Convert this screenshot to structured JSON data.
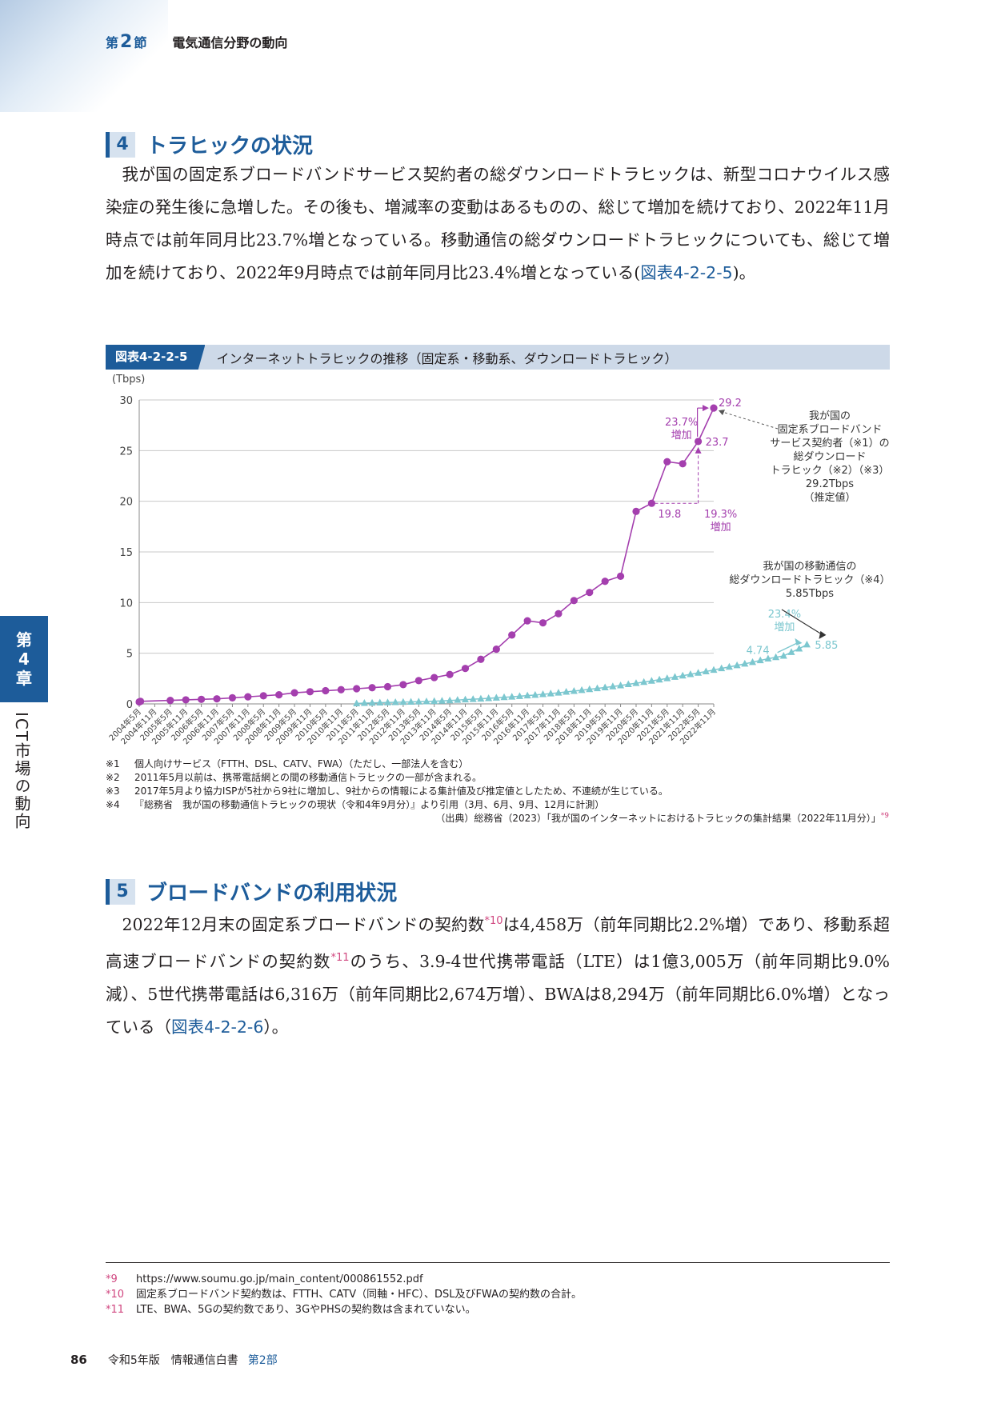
{
  "running_head": {
    "section_prefix": "第",
    "section_num": "2",
    "section_suffix": "節",
    "title": "電気通信分野の動向"
  },
  "section4": {
    "num": "4",
    "title": "トラヒックの状況",
    "p1": "我が国の固定系ブロードバンドサービス契約者の総ダウンロードトラヒックは、新型コロナウイルス感染症の発生後に急増した。その後も、増減率の変動はあるものの、総じて増加を続けており、2022年11月時点では前年同月比23.7%増となっている。移動通信の総ダウンロードトラヒックについても、総じて増加を続けており、2022年9月時点では前年同月比23.4%増となっている",
    "p1_open": "(",
    "p1_ref": "図表4-2-2-5",
    "p1_close": ")。"
  },
  "figure": {
    "label": "図表4-2-2-5",
    "title": "インターネットトラヒックの推移（固定系・移動系、ダウンロードトラヒック）",
    "notes": [
      {
        "mark": "※1",
        "text": "個人向けサービス（FTTH、DSL、CATV、FWA）（ただし、一部法人を含む）"
      },
      {
        "mark": "※2",
        "text": "2011年5月以前は、携帯電話網との間の移動通信トラヒックの一部が含まれる。"
      },
      {
        "mark": "※3",
        "text": "2017年5月より協力ISPが5社から9社に増加し、9社からの情報による集計値及び推定値としたため、不連続が生じている。"
      },
      {
        "mark": "※4",
        "text": "『総務省　我が国の移動通信トラヒックの現状（令和4年9月分）』より引用（3月、6月、9月、12月に計測）"
      }
    ],
    "source": "（出典）総務省（2023）「我が国のインターネットにおけるトラヒックの集計結果（2022年11月分）」",
    "source_sup": "*9"
  },
  "chart_data": {
    "type": "line",
    "ylabel": "(Tbps)",
    "ylim": [
      0,
      30
    ],
    "yticks": [
      0,
      5,
      10,
      15,
      20,
      25,
      30
    ],
    "grid": true,
    "categories": [
      "2004年5月",
      "2004年11月",
      "2005年5月",
      "2005年11月",
      "2006年5月",
      "2006年11月",
      "2007年5月",
      "2007年11月",
      "2008年5月",
      "2008年11月",
      "2009年5月",
      "2009年11月",
      "2010年5月",
      "2010年11月",
      "2011年5月",
      "2011年11月",
      "2012年5月",
      "2012年11月",
      "2013年5月",
      "2013年11月",
      "2014年5月",
      "2014年11月",
      "2015年5月",
      "2015年11月",
      "2016年5月",
      "2016年11月",
      "2017年5月",
      "2017年11月",
      "2018年5月",
      "2018年11月",
      "2019年5月",
      "2019年11月",
      "2020年5月",
      "2020年11月",
      "2021年5月",
      "2021年11月",
      "2022年5月",
      "2022年11月"
    ],
    "fixed": {
      "months": [
        0,
        0.5,
        12,
        18,
        24,
        30,
        36,
        42,
        48,
        54,
        60,
        66,
        72,
        78,
        84,
        90,
        96,
        102,
        108,
        114,
        120,
        126,
        132,
        138,
        144,
        150,
        156,
        162,
        168,
        174,
        180,
        186,
        192,
        198,
        204,
        210,
        216,
        222
      ],
      "values": [
        0.2,
        0.25,
        0.35,
        0.4,
        0.45,
        0.5,
        0.6,
        0.7,
        0.8,
        0.9,
        1.1,
        1.2,
        1.3,
        1.4,
        1.5,
        1.6,
        1.7,
        1.9,
        2.3,
        2.6,
        2.9,
        3.5,
        4.4,
        5.4,
        6.8,
        8.2,
        8.0,
        8.9,
        10.2,
        11.0,
        12.1,
        12.6,
        19.0,
        19.8,
        23.9,
        23.7,
        25.9,
        29.2
      ]
    },
    "mobile": {
      "start_month": 84,
      "step_months": 3,
      "values": [
        0.04,
        0.08,
        0.1,
        0.12,
        0.14,
        0.16,
        0.18,
        0.2,
        0.22,
        0.24,
        0.27,
        0.3,
        0.34,
        0.38,
        0.42,
        0.46,
        0.5,
        0.55,
        0.6,
        0.65,
        0.7,
        0.76,
        0.82,
        0.88,
        0.95,
        1.02,
        1.1,
        1.18,
        1.26,
        1.35,
        1.44,
        1.53,
        1.62,
        1.72,
        1.82,
        1.93,
        2.04,
        2.15,
        2.27,
        2.39,
        2.52,
        2.65,
        2.78,
        2.92,
        3.06,
        3.2,
        3.35,
        3.5,
        3.65,
        3.8,
        3.96,
        4.12,
        4.29,
        4.46,
        4.6,
        4.74,
        5.1,
        5.45,
        5.85
      ]
    },
    "point_labels": {
      "fixed_2021_11": "19.8",
      "fixed_2022_05": "23.7",
      "fixed_2022_11": "29.2",
      "mobile_prev": "4.74",
      "mobile_last": "5.85"
    },
    "growth_labels": {
      "fixed_2021_line1": "19.3%",
      "fixed_2021_line2": "増加",
      "fixed_2022_line1": "23.7%",
      "fixed_2022_line2": "増加",
      "mobile_line1": "23.4%",
      "mobile_line2": "増加"
    },
    "annotation_fixed": [
      "我が国の",
      "固定系ブロードバンド",
      "サービス契約者（※1）の",
      "総ダウンロード",
      "トラヒック（※2）（※3）",
      "29.2Tbps",
      "（推定値）"
    ],
    "annotation_mobile": [
      "我が国の移動通信の",
      "総ダウンロードトラヒック（※4）",
      "5.85Tbps"
    ],
    "colors": {
      "fixed": "#a43fae",
      "mobile": "#7cc7cf",
      "grid": "#c8c8c8"
    }
  },
  "section5": {
    "num": "5",
    "title": "ブロードバンドの利用状況",
    "t1": "2022年12月末の固定系ブロードバンドの契約数",
    "sup1": "*10",
    "t2": "は4,458万（前年同期比2.2%増）であり、移動系超高速ブロードバンドの契約数",
    "sup2": "*11",
    "t3": "のうち、3.9-4世代携帯電話（LTE）は1億3,005万（前年同期比9.0%減）、5世代携帯電話は6,316万（前年同期比2,674万増）、BWAは8,294万（前年同期比6.0%増）となっている（",
    "ref": "図表4-2-2-6",
    "t4": "）。"
  },
  "footnotes": [
    {
      "mark": "*9",
      "text": "https://www.soumu.go.jp/main_content/000861552.pdf"
    },
    {
      "mark": "*10",
      "text": "固定系ブロードバンド契約数は、FTTH、CATV（同軸・HFC）、DSL及びFWAの契約数の合計。"
    },
    {
      "mark": "*11",
      "text": "LTE、BWA、5Gの契約数であり、3GやPHSの契約数は含まれていない。"
    }
  ],
  "footer": {
    "page": "86",
    "book": "令和5年版　情報通信白書",
    "part": "第2部"
  },
  "chapter_tab": {
    "prefix": "第",
    "num": "4",
    "suffix": "章",
    "title": "ICT市場の動向"
  }
}
